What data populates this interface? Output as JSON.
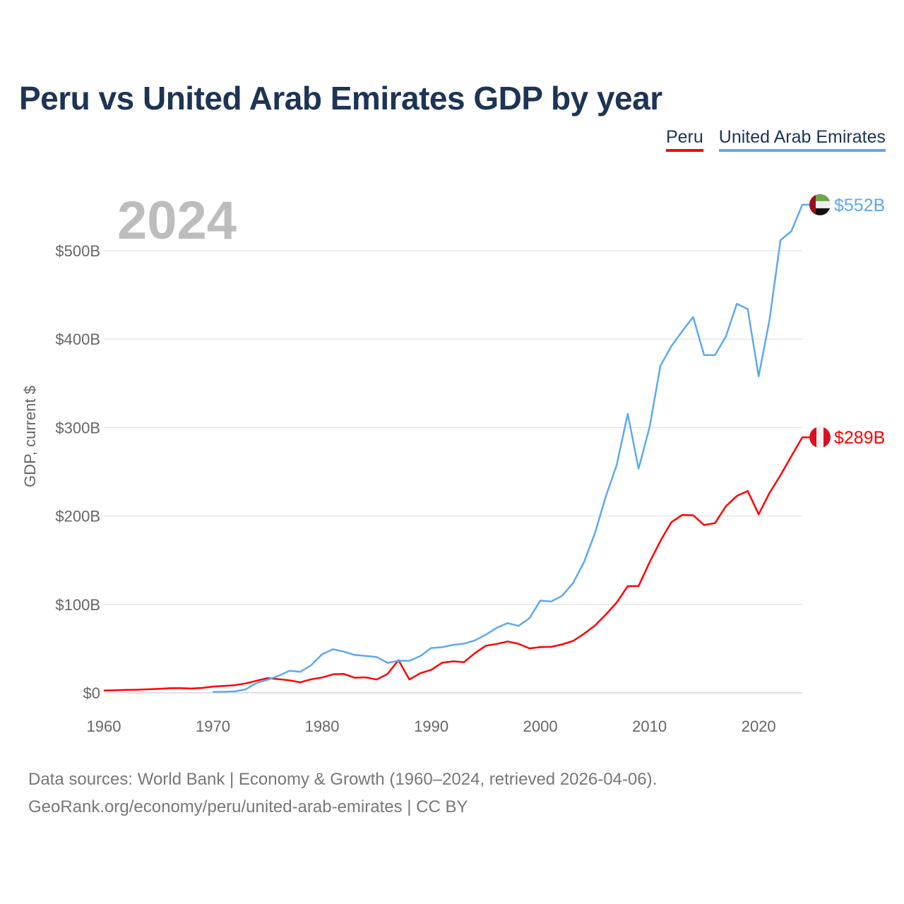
{
  "title": "Peru vs United Arab Emirates GDP by year",
  "current_year": "2024",
  "source_line1": "Data sources: World Bank | Economy & Growth (1960–2024, retrieved 2026-04-06).",
  "source_line2": "GeoRank.org/economy/peru/united-arab-emirates | CC BY",
  "chart_data": {
    "type": "line",
    "title": "Peru vs United Arab Emirates GDP by year",
    "xlabel": "",
    "ylabel": "GDP, current $",
    "xlim": [
      1960,
      2024
    ],
    "ylim": [
      0,
      500
    ],
    "grid": true,
    "legend_placement": "top-right",
    "x_ticks": [
      1960,
      1970,
      1980,
      1990,
      2000,
      2010,
      2020
    ],
    "x_tick_labels": [
      "1960",
      "1970",
      "1980",
      "1990",
      "2000",
      "2010",
      "2020"
    ],
    "y_ticks": [
      0,
      100,
      200,
      300,
      400,
      500
    ],
    "y_tick_labels": [
      "$0",
      "$100B",
      "$200B",
      "$300B",
      "$400B",
      "$500B"
    ],
    "series": [
      {
        "name": "Peru",
        "color": "#ff0000",
        "end_label": "$289B",
        "flag": "peru-flag",
        "x_start": 1960,
        "values": [
          2.6,
          2.9,
          3.3,
          3.5,
          4.0,
          4.5,
          5.2,
          5.3,
          4.9,
          5.5,
          7.1,
          7.8,
          8.6,
          10.6,
          13.7,
          16.6,
          15.5,
          14.1,
          11.9,
          15.3,
          17.3,
          20.9,
          21.3,
          17.1,
          17.5,
          15.0,
          21.4,
          37.0,
          15.0,
          22.2,
          26.0,
          34.0,
          35.6,
          34.7,
          44.9,
          53.3,
          55.3,
          58.1,
          55.5,
          50.2,
          51.7,
          52.0,
          54.8,
          58.7,
          66.8,
          76.1,
          88.6,
          102.2,
          120.6,
          120.8,
          147.5,
          171.8,
          193.0,
          201.2,
          200.8,
          189.8,
          191.9,
          211.0,
          222.6,
          228.3,
          201.9,
          226.0,
          246.0,
          267.6,
          289.0
        ]
      },
      {
        "name": "United Arab Emirates",
        "color": "#5fa8ee",
        "end_label": "$552B",
        "flag": "uae-flag",
        "x_start": 1970,
        "values": [
          1.0,
          1.2,
          1.6,
          3.9,
          11.1,
          14.7,
          19.2,
          24.9,
          23.8,
          31.2,
          43.6,
          49.3,
          46.6,
          42.8,
          41.8,
          40.6,
          33.9,
          36.3,
          36.3,
          41.5,
          50.7,
          51.6,
          54.2,
          55.6,
          59.3,
          65.7,
          73.6,
          78.8,
          75.7,
          84.4,
          104.3,
          103.3,
          109.8,
          124.3,
          147.8,
          180.6,
          222.1,
          257.9,
          315.5,
          253.5,
          300.2,
          369.9,
          392.0,
          409.0,
          425.0,
          382.0,
          382.0,
          403.0,
          440.0,
          434.0,
          358.0,
          422.0,
          512.0,
          522.0,
          552.0
        ]
      }
    ]
  }
}
